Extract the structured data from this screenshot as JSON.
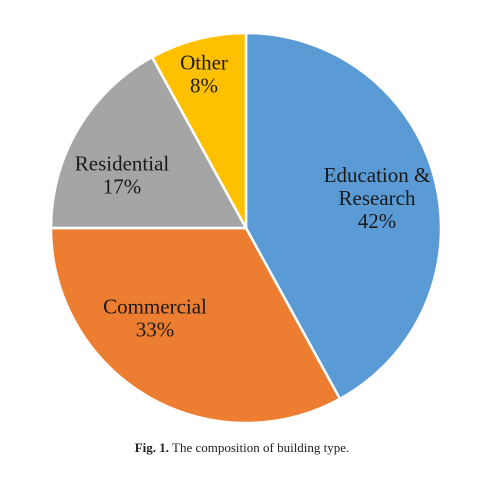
{
  "chart_data": {
    "type": "pie",
    "title": "",
    "slices": [
      {
        "name": "Education & Research",
        "value": 42,
        "label_lines": [
          "Education &",
          "Research",
          "42%"
        ],
        "color": "#5b9bd5"
      },
      {
        "name": "Commercial",
        "value": 33,
        "label_lines": [
          "Commercial",
          "33%"
        ],
        "color": "#ed7d31"
      },
      {
        "name": "Residential",
        "value": 17,
        "label_lines": [
          "Residential",
          "17%"
        ],
        "color": "#a5a5a5"
      },
      {
        "name": "Other",
        "value": 8,
        "label_lines": [
          "Other",
          "8%"
        ],
        "color": "#ffc000"
      }
    ],
    "start_angle": "12 o'clock",
    "direction": "clockwise",
    "legend": "none",
    "data_labels": "inside"
  },
  "caption": {
    "fig_number": "Fig. 1.",
    "text": "The composition of building type."
  }
}
